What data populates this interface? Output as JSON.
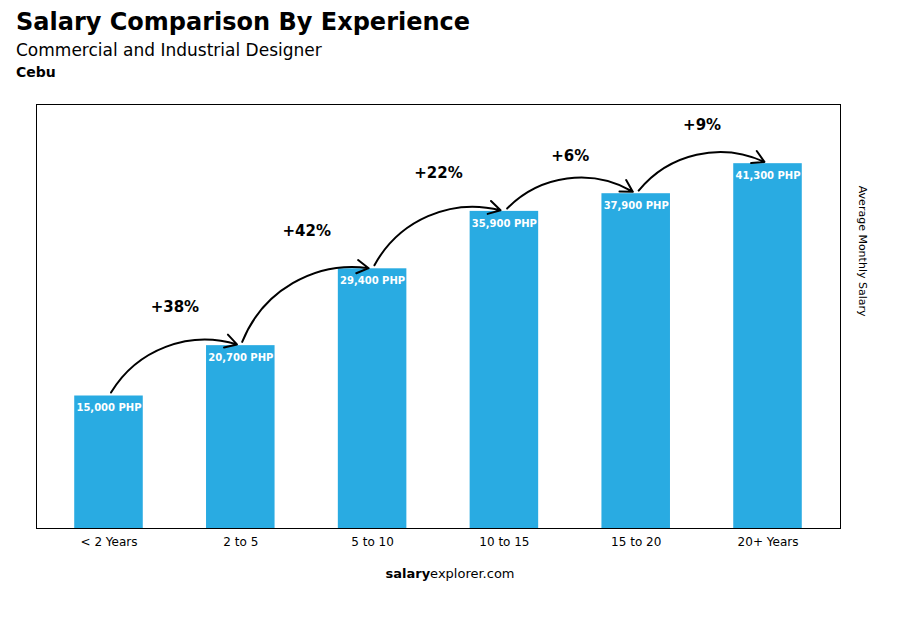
{
  "chart_data": {
    "type": "bar",
    "title": "Salary Comparison By Experience",
    "subtitle": "Commercial and Industrial Designer",
    "location": "Cebu",
    "categories": [
      "< 2 Years",
      "2 to 5",
      "5 to 10",
      "10 to 15",
      "15 to 20",
      "20+ Years"
    ],
    "values": [
      15000,
      20700,
      29400,
      35900,
      37900,
      41300
    ],
    "value_labels": [
      "15,000 PHP",
      "20,700 PHP",
      "29,400 PHP",
      "35,900 PHP",
      "37,900 PHP",
      "41,300 PHP"
    ],
    "data_labels": true,
    "change_labels": [
      "+38%",
      "+42%",
      "+22%",
      "+6%",
      "+9%"
    ],
    "ylabel": "Average Monthly Salary",
    "footer": [
      "salary",
      "explorer.com"
    ],
    "color": "#29ABE2",
    "ylim": [
      0,
      48000
    ],
    "yticks": [],
    "tick_labels": "x",
    "grid": false
  }
}
